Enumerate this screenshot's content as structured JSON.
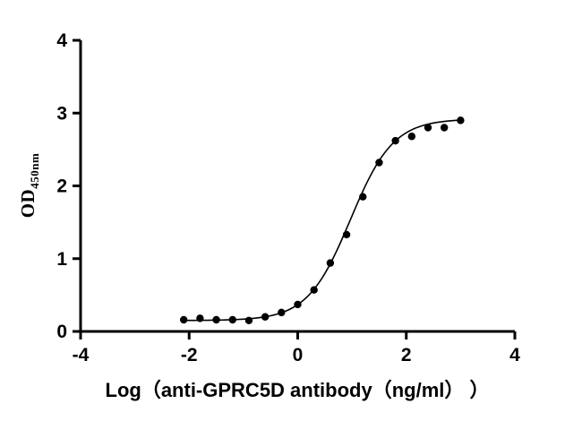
{
  "page": {
    "background": "#ffffff",
    "foreground": "#000000"
  },
  "chart_data": {
    "type": "scatter",
    "title": "",
    "xlabel": "Log（anti-GPRC5D antibody（ng/ml） ）",
    "ylabel_main": "OD",
    "ylabel_sub": "450nm",
    "xlim": [
      -4,
      4
    ],
    "ylim": [
      0,
      4
    ],
    "x_ticks": [
      -4,
      -2,
      0,
      2,
      4
    ],
    "y_ticks": [
      0,
      1,
      2,
      3,
      4
    ],
    "grid": false,
    "legend": "none",
    "marker_color": "#000000",
    "line_color": "#000000",
    "points": [
      {
        "x": -2.1,
        "y": 0.16
      },
      {
        "x": -1.8,
        "y": 0.18
      },
      {
        "x": -1.5,
        "y": 0.16
      },
      {
        "x": -1.2,
        "y": 0.16
      },
      {
        "x": -0.9,
        "y": 0.15
      },
      {
        "x": -0.6,
        "y": 0.2
      },
      {
        "x": -0.3,
        "y": 0.26
      },
      {
        "x": 0.0,
        "y": 0.37
      },
      {
        "x": 0.3,
        "y": 0.57
      },
      {
        "x": 0.6,
        "y": 0.94
      },
      {
        "x": 0.9,
        "y": 1.33
      },
      {
        "x": 1.2,
        "y": 1.85
      },
      {
        "x": 1.5,
        "y": 2.32
      },
      {
        "x": 1.8,
        "y": 2.62
      },
      {
        "x": 2.1,
        "y": 2.68
      },
      {
        "x": 2.4,
        "y": 2.8
      },
      {
        "x": 2.7,
        "y": 2.8
      },
      {
        "x": 3.0,
        "y": 2.9
      }
    ],
    "fit": {
      "model": "4PL",
      "bottom": 0.15,
      "top": 2.92,
      "logEC50": 0.97,
      "hillslope": 1.1,
      "x_start": -2.1,
      "x_end": 3.0
    }
  }
}
